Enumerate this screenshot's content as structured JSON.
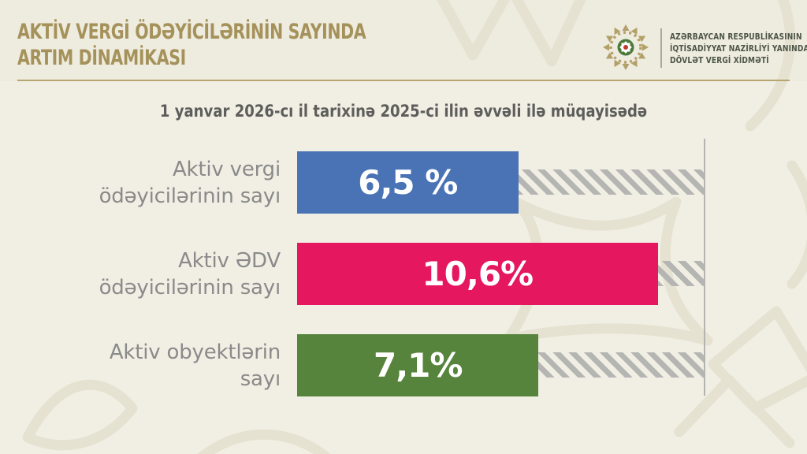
{
  "header": {
    "title_lines": [
      "AKTİV VERGİ ÖDƏYİCİLƏRİNİN SAYINDA",
      "ARTIM DİNAMİKASI"
    ],
    "organization": {
      "emblem_icon": "state-tax-service-emblem",
      "name_lines": [
        "AZƏRBAYCAN RESPUBLİKASININ",
        "İQTİSADİYYAT NAZİRLİYİ YANINDA",
        "DÖVLƏT VERGİ XİDMƏTİ"
      ]
    }
  },
  "subtitle": "1 yanvar 2026-cı il tarixinə 2025-ci ilin əvvəli ilə müqayisədə",
  "colors": {
    "background": "#f1efe4",
    "header_band": "#eeebdf",
    "title_text": "#a5925b",
    "gold_rule": "#b6a671",
    "org_text": "#4c5547",
    "subtitle_text": "#5d5d5b",
    "label_text": "#8a8a8a",
    "bar_blue": "#4a73b5",
    "bar_pink": "#e4175f",
    "bar_green": "#57843c",
    "hatch_gray": "#b5b5b3",
    "axis_line": "#b3b3b1",
    "background_pattern": "#e6e2d1"
  },
  "chart_data": {
    "type": "bar",
    "orientation": "horizontal",
    "title": "AKTİV VERGİ ÖDƏYİCİLƏRİNİN SAYINDA ARTIM DİNAMİKASI",
    "subtitle": "1 yanvar 2026-cı il tarixinə 2025-ci ilin əvvəli ilə müqayisədə",
    "categories": [
      "Aktiv vergi ödəyicilərinin sayı",
      "Aktiv ƏDV ödəyicilərinin sayı",
      "Aktiv obyektlərin sayı"
    ],
    "values": [
      6.5,
      10.6,
      7.1
    ],
    "xlim": [
      0,
      12
    ],
    "grid": false,
    "legend": false,
    "bars": [
      {
        "label_lines": [
          "Aktiv vergi",
          "ödəyicilərinin sayı"
        ],
        "value": 6.5,
        "value_label": "6,5 %",
        "color": "#4a73b5"
      },
      {
        "label_lines": [
          "Aktiv ƏDV",
          "ödəyicilərinin sayı"
        ],
        "value": 10.6,
        "value_label": "10,6%",
        "color": "#e4175f"
      },
      {
        "label_lines": [
          "Aktiv obyektlərin",
          "sayı"
        ],
        "value": 7.1,
        "value_label": "7,1%",
        "color": "#57843c"
      }
    ]
  }
}
